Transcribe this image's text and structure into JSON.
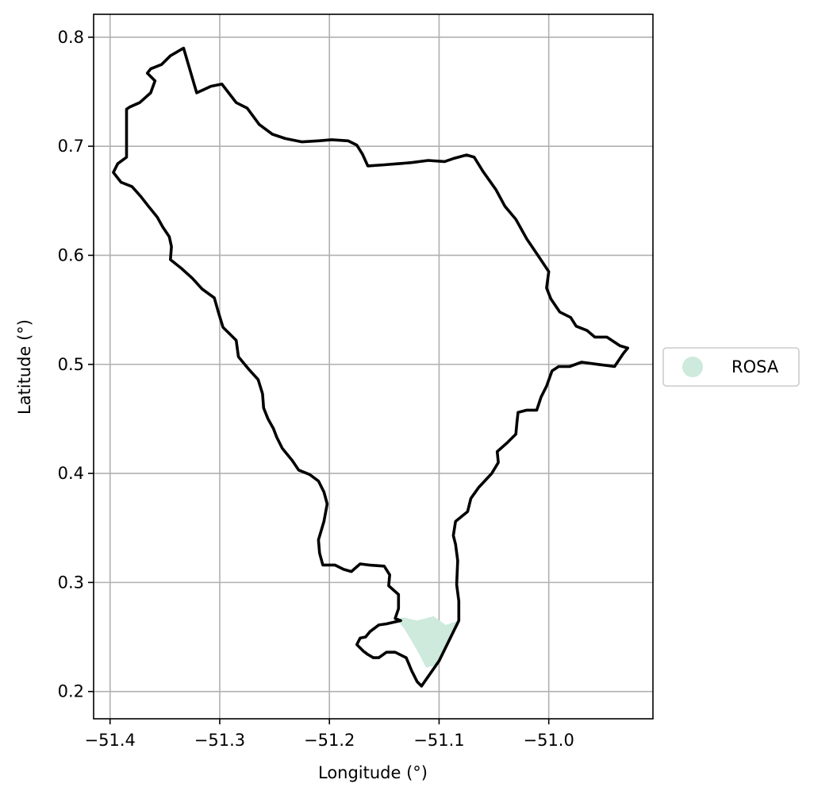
{
  "chart_data": {
    "type": "map",
    "xlabel": "Longitude (°)",
    "ylabel": "Latitude (°)",
    "xlim": [
      -51.415,
      -50.905
    ],
    "ylim": [
      0.175,
      0.821
    ],
    "xticks": [
      -51.4,
      -51.3,
      -51.2,
      -51.1,
      -51.0
    ],
    "xtick_labels": [
      "−51.4",
      "−51.3",
      "−51.2",
      "−51.1",
      "−51.0"
    ],
    "yticks": [
      0.2,
      0.3,
      0.4,
      0.5,
      0.6,
      0.7,
      0.8
    ],
    "ytick_labels": [
      "0.2",
      "0.3",
      "0.4",
      "0.5",
      "0.6",
      "0.7",
      "0.8"
    ],
    "grid": true,
    "legend": {
      "placement": "right",
      "entries": [
        {
          "label": "ROSA",
          "color": "#cdeadc"
        }
      ]
    },
    "boundary": {
      "color": "#000000",
      "points": [
        [
          -51.333,
          0.79
        ],
        [
          -51.345,
          0.783
        ],
        [
          -51.353,
          0.775
        ],
        [
          -51.363,
          0.771
        ],
        [
          -51.366,
          0.767
        ],
        [
          -51.359,
          0.76
        ],
        [
          -51.363,
          0.749
        ],
        [
          -51.373,
          0.74
        ],
        [
          -51.382,
          0.736
        ],
        [
          -51.385,
          0.734
        ],
        [
          -51.385,
          0.69
        ],
        [
          -51.393,
          0.684
        ],
        [
          -51.397,
          0.676
        ],
        [
          -51.39,
          0.667
        ],
        [
          -51.38,
          0.663
        ],
        [
          -51.372,
          0.654
        ],
        [
          -51.365,
          0.645
        ],
        [
          -51.357,
          0.635
        ],
        [
          -51.352,
          0.626
        ],
        [
          -51.346,
          0.617
        ],
        [
          -51.344,
          0.608
        ],
        [
          -51.345,
          0.596
        ],
        [
          -51.335,
          0.588
        ],
        [
          -51.325,
          0.579
        ],
        [
          -51.316,
          0.569
        ],
        [
          -51.305,
          0.561
        ],
        [
          -51.301,
          0.547
        ],
        [
          -51.297,
          0.534
        ],
        [
          -51.285,
          0.522
        ],
        [
          -51.283,
          0.507
        ],
        [
          -51.274,
          0.496
        ],
        [
          -51.265,
          0.486
        ],
        [
          -51.261,
          0.473
        ],
        [
          -51.26,
          0.46
        ],
        [
          -51.256,
          0.45
        ],
        [
          -51.251,
          0.441
        ],
        [
          -51.248,
          0.433
        ],
        [
          -51.243,
          0.423
        ],
        [
          -51.234,
          0.412
        ],
        [
          -51.228,
          0.403
        ],
        [
          -51.218,
          0.399
        ],
        [
          -51.21,
          0.393
        ],
        [
          -51.205,
          0.383
        ],
        [
          -51.202,
          0.372
        ],
        [
          -51.205,
          0.356
        ],
        [
          -51.21,
          0.339
        ],
        [
          -51.209,
          0.327
        ],
        [
          -51.206,
          0.316
        ],
        [
          -51.195,
          0.316
        ],
        [
          -51.187,
          0.312
        ],
        [
          -51.18,
          0.31
        ],
        [
          -51.172,
          0.317
        ],
        [
          -51.164,
          0.316
        ],
        [
          -51.15,
          0.315
        ],
        [
          -51.145,
          0.307
        ],
        [
          -51.146,
          0.297
        ],
        [
          -51.137,
          0.289
        ],
        [
          -51.137,
          0.276
        ],
        [
          -51.14,
          0.267
        ],
        [
          -51.135,
          0.265
        ],
        [
          -51.148,
          0.262
        ],
        [
          -51.155,
          0.261
        ],
        [
          -51.163,
          0.255
        ],
        [
          -51.167,
          0.25
        ],
        [
          -51.172,
          0.249
        ],
        [
          -51.175,
          0.243
        ],
        [
          -51.169,
          0.237
        ],
        [
          -51.165,
          0.234
        ],
        [
          -51.16,
          0.231
        ],
        [
          -51.155,
          0.231
        ],
        [
          -51.148,
          0.236
        ],
        [
          -51.14,
          0.236
        ],
        [
          -51.13,
          0.231
        ],
        [
          -51.125,
          0.219
        ],
        [
          -51.12,
          0.209
        ],
        [
          -51.116,
          0.205
        ],
        [
          -51.1,
          0.228
        ],
        [
          -51.082,
          0.265
        ],
        [
          -51.082,
          0.283
        ],
        [
          -51.084,
          0.298
        ],
        [
          -51.083,
          0.32
        ],
        [
          -51.085,
          0.335
        ],
        [
          -51.087,
          0.343
        ],
        [
          -51.085,
          0.356
        ],
        [
          -51.074,
          0.365
        ],
        [
          -51.071,
          0.377
        ],
        [
          -51.064,
          0.387
        ],
        [
          -51.052,
          0.4
        ],
        [
          -51.046,
          0.41
        ],
        [
          -51.047,
          0.42
        ],
        [
          -51.038,
          0.428
        ],
        [
          -51.03,
          0.436
        ],
        [
          -51.029,
          0.447
        ],
        [
          -51.028,
          0.456
        ],
        [
          -51.02,
          0.458
        ],
        [
          -51.011,
          0.458
        ],
        [
          -51.007,
          0.47
        ],
        [
          -51.002,
          0.48
        ],
        [
          -50.997,
          0.494
        ],
        [
          -50.991,
          0.498
        ],
        [
          -50.981,
          0.498
        ],
        [
          -50.97,
          0.502
        ],
        [
          -50.955,
          0.5
        ],
        [
          -50.94,
          0.498
        ],
        [
          -50.932,
          0.51
        ],
        [
          -50.928,
          0.515
        ],
        [
          -50.935,
          0.517
        ],
        [
          -50.947,
          0.525
        ],
        [
          -50.958,
          0.525
        ],
        [
          -50.965,
          0.531
        ],
        [
          -50.975,
          0.535
        ],
        [
          -50.98,
          0.543
        ],
        [
          -50.99,
          0.548
        ],
        [
          -50.998,
          0.56
        ],
        [
          -51.002,
          0.57
        ],
        [
          -51.0,
          0.585
        ],
        [
          -51.01,
          0.6
        ],
        [
          -51.02,
          0.615
        ],
        [
          -51.03,
          0.633
        ],
        [
          -51.04,
          0.645
        ],
        [
          -51.048,
          0.66
        ],
        [
          -51.06,
          0.677
        ],
        [
          -51.068,
          0.69
        ],
        [
          -51.075,
          0.692
        ],
        [
          -51.086,
          0.689
        ],
        [
          -51.095,
          0.686
        ],
        [
          -51.11,
          0.687
        ],
        [
          -51.125,
          0.685
        ],
        [
          -51.137,
          0.684
        ],
        [
          -51.15,
          0.683
        ],
        [
          -51.165,
          0.682
        ],
        [
          -51.17,
          0.693
        ],
        [
          -51.175,
          0.701
        ],
        [
          -51.183,
          0.705
        ],
        [
          -51.198,
          0.706
        ],
        [
          -51.21,
          0.705
        ],
        [
          -51.225,
          0.704
        ],
        [
          -51.24,
          0.707
        ],
        [
          -51.252,
          0.711
        ],
        [
          -51.264,
          0.72
        ],
        [
          -51.275,
          0.735
        ],
        [
          -51.285,
          0.74
        ],
        [
          -51.298,
          0.757
        ],
        [
          -51.308,
          0.755
        ],
        [
          -51.321,
          0.749
        ]
      ]
    },
    "regions": [
      {
        "name": "ROSA",
        "color": "#cdeadc",
        "points": [
          [
            -51.133,
            0.268
          ],
          [
            -51.12,
            0.265
          ],
          [
            -51.105,
            0.269
          ],
          [
            -51.094,
            0.261
          ],
          [
            -51.082,
            0.265
          ],
          [
            -51.094,
            0.241
          ],
          [
            -51.103,
            0.224
          ],
          [
            -51.112,
            0.222
          ],
          [
            -51.118,
            0.234
          ],
          [
            -51.126,
            0.248
          ],
          [
            -51.132,
            0.258
          ],
          [
            -51.138,
            0.265
          ]
        ]
      }
    ]
  }
}
